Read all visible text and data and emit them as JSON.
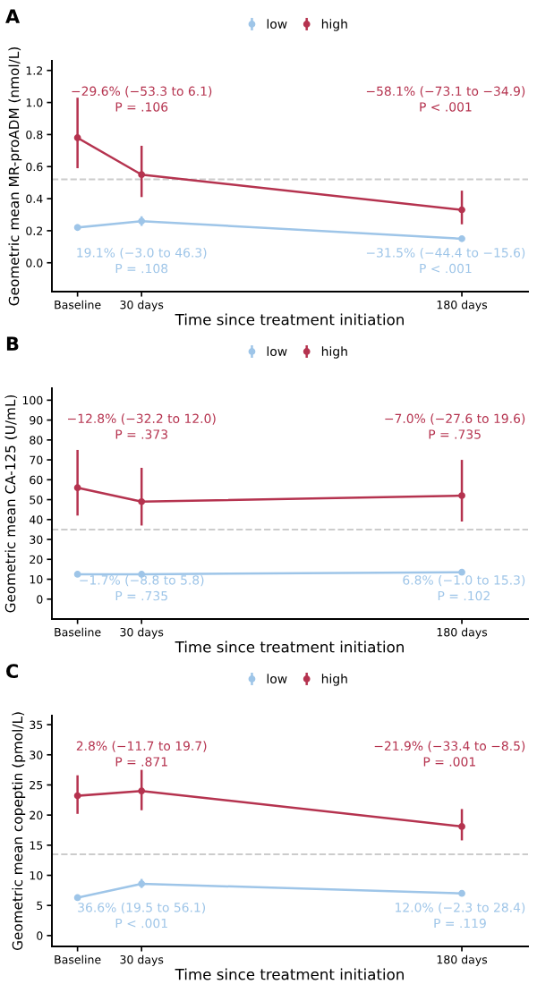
{
  "chart_data": [
    {
      "type": "line",
      "title": "A",
      "xlabel": "Time since treatment initiation",
      "ylabel": "Geometric mean MR-proADM (nmol/L)",
      "x": [
        0,
        30,
        180
      ],
      "xlim": [
        -12,
        211
      ],
      "xticks": [
        {
          "value": 0,
          "label": "Baseline"
        },
        {
          "value": 30,
          "label": "30 days"
        },
        {
          "value": 180,
          "label": "180 days"
        }
      ],
      "ylim": [
        -0.18,
        1.26
      ],
      "yticks": [
        {
          "value": 0,
          "label": "0.0"
        },
        {
          "value": 0.2,
          "label": "0.2"
        },
        {
          "value": 0.4,
          "label": "0.4"
        },
        {
          "value": 0.6,
          "label": "0.6"
        },
        {
          "value": 0.8,
          "label": "0.8"
        },
        {
          "value": 1,
          "label": "1.0"
        },
        {
          "value": 1.2,
          "label": "1.2"
        }
      ],
      "grid": false,
      "legend": "top",
      "marker": "circle",
      "line_style": "solid",
      "ref_lines": [
        {
          "axis": "y",
          "value": 0.52,
          "color": "#cccccc",
          "line_style": "dashed"
        }
      ],
      "annotations": [
        "−29.6% (−53.3 to 6.1)\nP = .106",
        "−58.1% (−73.1 to −34.9)\nP < .001",
        "19.1% (−3.0 to 46.3)\nP = .108",
        "−31.5% (−44.4 to −15.6)\nP < .001"
      ],
      "series": [
        {
          "name": "low",
          "color": "#9ec5e8",
          "values": [
            0.22,
            0.26,
            0.15
          ],
          "errors": [
            [
              0.2,
              0.24
            ],
            [
              0.23,
              0.29
            ],
            [
              0.14,
              0.16
            ]
          ]
        },
        {
          "name": "high",
          "color": "#b5334f",
          "values": [
            0.78,
            0.55,
            0.33
          ],
          "errors": [
            [
              0.59,
              1.03
            ],
            [
              0.41,
              0.73
            ],
            [
              0.24,
              0.45
            ]
          ]
        }
      ]
    },
    {
      "type": "line",
      "title": "B",
      "xlabel": "Time since treatment initiation",
      "ylabel": "Geometric mean CA-125 (U/mL)",
      "x": [
        0,
        30,
        180
      ],
      "xlim": [
        -12,
        211
      ],
      "xticks": [
        {
          "value": 0,
          "label": "Baseline"
        },
        {
          "value": 30,
          "label": "30 days"
        },
        {
          "value": 180,
          "label": "180 days"
        }
      ],
      "ylim": [
        -10,
        106
      ],
      "yticks": [
        0,
        10,
        20,
        30,
        40,
        50,
        60,
        70,
        80,
        90,
        100
      ],
      "grid": false,
      "legend": "top",
      "marker": "circle",
      "line_style": "solid",
      "ref_lines": [
        {
          "axis": "y",
          "value": 35,
          "color": "#cccccc",
          "line_style": "dashed"
        }
      ],
      "annotations": [
        "−12.8% (−32.2 to 12.0)\nP = .373",
        "−7.0% (−27.6 to 19.6)\nP = .735",
        "−1.7% (−8.8 to 5.8)\nP = .735",
        "6.8% (−1.0 to 15.3)\nP = .102"
      ],
      "series": [
        {
          "name": "low",
          "color": "#9ec5e8",
          "values": [
            12.5,
            12.5,
            13.5
          ],
          "errors": [
            [
              12,
              13
            ],
            [
              12,
              13
            ],
            [
              13,
              14
            ]
          ]
        },
        {
          "name": "high",
          "color": "#b5334f",
          "values": [
            56,
            49,
            52
          ],
          "errors": [
            [
              42,
              75
            ],
            [
              37,
              66
            ],
            [
              39,
              70
            ]
          ]
        }
      ]
    },
    {
      "type": "line",
      "title": "C",
      "xlabel": "Time since treatment initiation",
      "ylabel": "Geometric mean copeptin (pmol/L)",
      "x": [
        0,
        30,
        180
      ],
      "xlim": [
        -12,
        211
      ],
      "xticks": [
        {
          "value": 0,
          "label": "Baseline"
        },
        {
          "value": 30,
          "label": "30 days"
        },
        {
          "value": 180,
          "label": "180 days"
        }
      ],
      "ylim": [
        -1.8,
        36.5
      ],
      "yticks": [
        0,
        5,
        10,
        15,
        20,
        25,
        30,
        35
      ],
      "grid": false,
      "legend": "top",
      "marker": "circle",
      "line_style": "solid",
      "ref_lines": [
        {
          "axis": "y",
          "value": 13.5,
          "color": "#cccccc",
          "line_style": "dashed"
        }
      ],
      "annotations": [
        "2.8% (−11.7 to 19.7)\nP = .871",
        "−21.9% (−33.4 to −8.5)\nP = .001",
        "36.6% (19.5 to 56.1)\nP < .001",
        "12.0% (−2.3 to 28.4)\nP = .119"
      ],
      "series": [
        {
          "name": "low",
          "color": "#9ec5e8",
          "values": [
            6.3,
            8.6,
            7.0
          ],
          "errors": [
            [
              5.8,
              6.8
            ],
            [
              7.9,
              9.4
            ],
            [
              6.5,
              7.5
            ]
          ]
        },
        {
          "name": "high",
          "color": "#b5334f",
          "values": [
            23.2,
            24,
            18.1
          ],
          "errors": [
            [
              20.2,
              26.6
            ],
            [
              20.8,
              27.5
            ],
            [
              15.8,
              21
            ]
          ]
        }
      ]
    }
  ]
}
